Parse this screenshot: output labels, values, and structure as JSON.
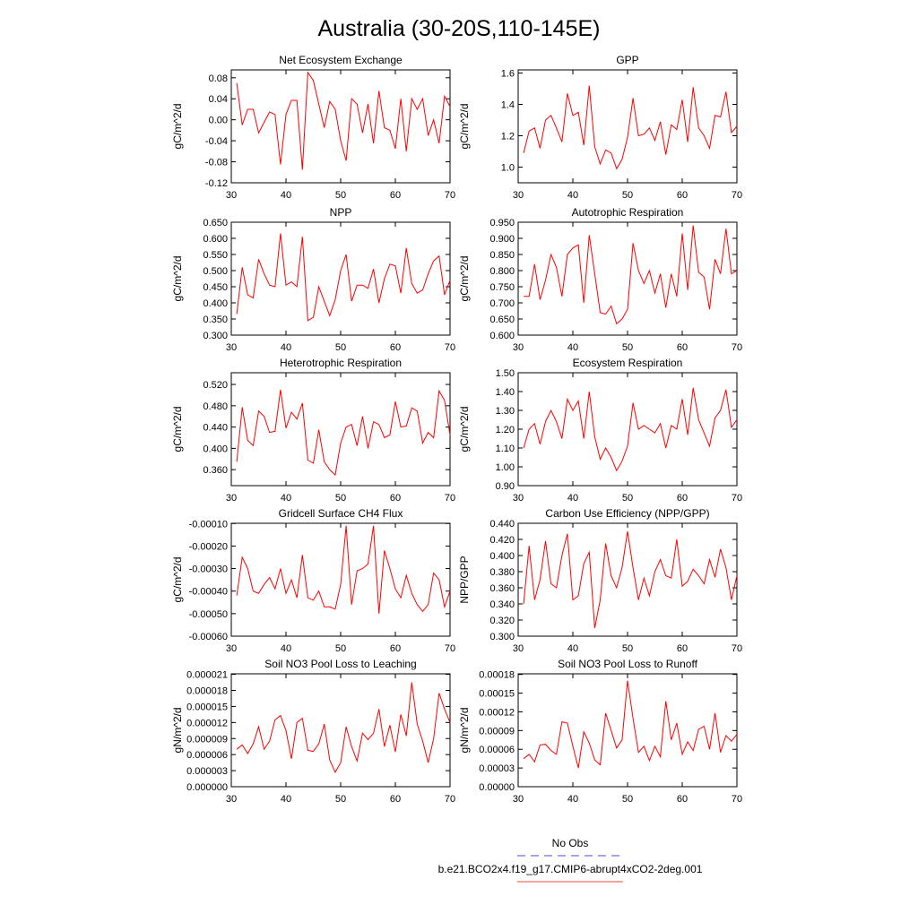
{
  "title": "Australia (30-20S,110-145E)",
  "legend": [
    {
      "label": "No Obs",
      "color": "#4b4bd8",
      "dashed": true
    },
    {
      "label": "b.e21.BCO2x4.f19_g17.CMIP6-abrupt4xCO2-2deg.001",
      "color": "#e8473f",
      "dashed": false
    }
  ],
  "chart_data": [
    {
      "type": "line",
      "title": "Net Ecosystem Exchange",
      "ylabel": "gC/m^2/d",
      "color": "#ff0000",
      "x": [
        31,
        32,
        33,
        34,
        35,
        36,
        37,
        38,
        39,
        40,
        41,
        42,
        43,
        44,
        45,
        46,
        47,
        48,
        49,
        50,
        51,
        52,
        53,
        54,
        55,
        56,
        57,
        58,
        59,
        60,
        61,
        62,
        63,
        64,
        65,
        66,
        67,
        68,
        69,
        70
      ],
      "values": [
        0.07,
        -0.01,
        0.02,
        0.02,
        -0.025,
        -0.005,
        0.015,
        0.01,
        -0.085,
        0.01,
        0.037,
        0.037,
        -0.095,
        0.09,
        0.075,
        0.03,
        -0.015,
        0.035,
        0.02,
        -0.04,
        -0.078,
        0.04,
        0.03,
        -0.025,
        0.03,
        -0.045,
        0.055,
        -0.015,
        -0.02,
        -0.055,
        0.04,
        -0.06,
        0.04,
        0.02,
        0.04,
        -0.03,
        0,
        -0.045,
        0.045,
        0.025
      ],
      "xlim": [
        30,
        70
      ],
      "xticks": [
        30,
        40,
        50,
        60,
        70
      ],
      "ylim": [
        -0.12,
        0.095
      ],
      "yticks": [
        -0.12,
        -0.08,
        -0.04,
        {
          "value": 0,
          "label": "0.00"
        },
        0.04,
        0.08
      ]
    },
    {
      "type": "line",
      "title": "GPP",
      "ylabel": "gC/m^2/d",
      "color": "#ff0000",
      "x": [
        31,
        32,
        33,
        34,
        35,
        36,
        37,
        38,
        39,
        40,
        41,
        42,
        43,
        44,
        45,
        46,
        47,
        48,
        49,
        50,
        51,
        52,
        53,
        54,
        55,
        56,
        57,
        58,
        59,
        60,
        61,
        62,
        63,
        64,
        65,
        66,
        67,
        68,
        69,
        70
      ],
      "values": [
        1.09,
        1.23,
        1.25,
        1.12,
        1.3,
        1.33,
        1.25,
        1.16,
        1.47,
        1.33,
        1.35,
        1.14,
        1.52,
        1.13,
        1.02,
        1.11,
        1.09,
        0.99,
        1.05,
        1.19,
        1.44,
        1.2,
        1.21,
        1.25,
        1.17,
        1.29,
        1.08,
        1.27,
        1.24,
        1.43,
        1.16,
        1.51,
        1.25,
        1.2,
        1.12,
        1.33,
        1.32,
        1.48,
        1.22,
        1.26
      ],
      "xlim": [
        30,
        70
      ],
      "xticks": [
        30,
        40,
        50,
        60,
        70
      ],
      "ylim": [
        0.9,
        1.62
      ],
      "yticks": [
        {
          "value": 1,
          "label": "1.0"
        },
        1.2,
        1.4,
        1.6
      ]
    },
    {
      "type": "line",
      "title": "NPP",
      "ylabel": "gC/m^2/d",
      "color": "#ff0000",
      "x": [
        31,
        32,
        33,
        34,
        35,
        36,
        37,
        38,
        39,
        40,
        41,
        42,
        43,
        44,
        45,
        46,
        47,
        48,
        49,
        50,
        51,
        52,
        53,
        54,
        55,
        56,
        57,
        58,
        59,
        60,
        61,
        62,
        63,
        64,
        65,
        66,
        67,
        68,
        69,
        70
      ],
      "values": [
        0.365,
        0.51,
        0.425,
        0.415,
        0.535,
        0.49,
        0.455,
        0.45,
        0.615,
        0.455,
        0.465,
        0.45,
        0.605,
        0.345,
        0.355,
        0.45,
        0.405,
        0.36,
        0.41,
        0.5,
        0.55,
        0.405,
        0.455,
        0.455,
        0.445,
        0.505,
        0.4,
        0.475,
        0.52,
        0.515,
        0.43,
        0.57,
        0.46,
        0.43,
        0.44,
        0.49,
        0.53,
        0.545,
        0.425,
        0.47
      ],
      "xlim": [
        30,
        70
      ],
      "xticks": [
        30,
        40,
        50,
        60,
        70
      ],
      "ylim": [
        0.3,
        0.65
      ],
      "yticks": [
        {
          "value": 0.3,
          "label": "0.300"
        },
        {
          "value": 0.35,
          "label": "0.350"
        },
        {
          "value": 0.4,
          "label": "0.400"
        },
        {
          "value": 0.45,
          "label": "0.450"
        },
        {
          "value": 0.5,
          "label": "0.500"
        },
        {
          "value": 0.55,
          "label": "0.550"
        },
        {
          "value": 0.6,
          "label": "0.600"
        },
        {
          "value": 0.65,
          "label": "0.650"
        }
      ]
    },
    {
      "type": "line",
      "title": "Autotrophic Respiration",
      "ylabel": "gC/m^2/d",
      "color": "#ff0000",
      "x": [
        31,
        32,
        33,
        34,
        35,
        36,
        37,
        38,
        39,
        40,
        41,
        42,
        43,
        44,
        45,
        46,
        47,
        48,
        49,
        50,
        51,
        52,
        53,
        54,
        55,
        56,
        57,
        58,
        59,
        60,
        61,
        62,
        63,
        64,
        65,
        66,
        67,
        68,
        69,
        70
      ],
      "values": [
        0.72,
        0.72,
        0.82,
        0.71,
        0.77,
        0.85,
        0.81,
        0.72,
        0.85,
        0.87,
        0.88,
        0.7,
        0.91,
        0.79,
        0.67,
        0.665,
        0.69,
        0.635,
        0.65,
        0.68,
        0.885,
        0.8,
        0.76,
        0.8,
        0.73,
        0.79,
        0.685,
        0.79,
        0.72,
        0.915,
        0.74,
        0.94,
        0.795,
        0.78,
        0.68,
        0.835,
        0.79,
        0.93,
        0.79,
        0.8
      ],
      "xlim": [
        30,
        70
      ],
      "xticks": [
        30,
        40,
        50,
        60,
        70
      ],
      "ylim": [
        0.6,
        0.95
      ],
      "yticks": [
        {
          "value": 0.6,
          "label": "0.600"
        },
        {
          "value": 0.65,
          "label": "0.650"
        },
        {
          "value": 0.7,
          "label": "0.700"
        },
        {
          "value": 0.75,
          "label": "0.750"
        },
        {
          "value": 0.8,
          "label": "0.800"
        },
        {
          "value": 0.85,
          "label": "0.850"
        },
        {
          "value": 0.9,
          "label": "0.900"
        },
        {
          "value": 0.95,
          "label": "0.950"
        }
      ]
    },
    {
      "type": "line",
      "title": "Heterotrophic Respiration",
      "ylabel": "gC/m^2/d",
      "color": "#ff0000",
      "x": [
        31,
        32,
        33,
        34,
        35,
        36,
        37,
        38,
        39,
        40,
        41,
        42,
        43,
        44,
        45,
        46,
        47,
        48,
        49,
        50,
        51,
        52,
        53,
        54,
        55,
        56,
        57,
        58,
        59,
        60,
        61,
        62,
        63,
        64,
        65,
        66,
        67,
        68,
        69,
        70
      ],
      "values": [
        0.375,
        0.477,
        0.415,
        0.405,
        0.47,
        0.46,
        0.43,
        0.432,
        0.51,
        0.438,
        0.468,
        0.455,
        0.485,
        0.378,
        0.372,
        0.435,
        0.375,
        0.36,
        0.35,
        0.41,
        0.44,
        0.445,
        0.405,
        0.46,
        0.4,
        0.45,
        0.445,
        0.42,
        0.425,
        0.488,
        0.44,
        0.442,
        0.476,
        0.47,
        0.41,
        0.43,
        0.42,
        0.508,
        0.49,
        0.425
      ],
      "xlim": [
        30,
        70
      ],
      "xticks": [
        30,
        40,
        50,
        60,
        70
      ],
      "ylim": [
        0.33,
        0.542
      ],
      "yticks": [
        {
          "value": 0.36,
          "label": "0.360"
        },
        {
          "value": 0.4,
          "label": "0.400"
        },
        {
          "value": 0.44,
          "label": "0.440"
        },
        {
          "value": 0.48,
          "label": "0.480"
        },
        {
          "value": 0.52,
          "label": "0.520"
        }
      ]
    },
    {
      "type": "line",
      "title": "Ecosystem Respiration",
      "ylabel": "gC/m^2/d",
      "color": "#ff0000",
      "x": [
        31,
        32,
        33,
        34,
        35,
        36,
        37,
        38,
        39,
        40,
        41,
        42,
        43,
        44,
        45,
        46,
        47,
        48,
        49,
        50,
        51,
        52,
        53,
        54,
        55,
        56,
        57,
        58,
        59,
        60,
        61,
        62,
        63,
        64,
        65,
        66,
        67,
        68,
        69,
        70
      ],
      "values": [
        1.1,
        1.2,
        1.23,
        1.12,
        1.24,
        1.3,
        1.24,
        1.15,
        1.36,
        1.3,
        1.35,
        1.15,
        1.4,
        1.16,
        1.04,
        1.1,
        1.05,
        0.98,
        1.03,
        1.11,
        1.34,
        1.2,
        1.22,
        1.2,
        1.18,
        1.23,
        1.1,
        1.22,
        1.2,
        1.36,
        1.17,
        1.42,
        1.25,
        1.18,
        1.11,
        1.26,
        1.3,
        1.41,
        1.21,
        1.25
      ],
      "xlim": [
        30,
        70
      ],
      "xticks": [
        30,
        40,
        50,
        60,
        70
      ],
      "ylim": [
        0.9,
        1.5
      ],
      "yticks": [
        {
          "value": 0.9,
          "label": "0.90"
        },
        {
          "value": 1,
          "label": "1.00"
        },
        {
          "value": 1.1,
          "label": "1.10"
        },
        {
          "value": 1.2,
          "label": "1.20"
        },
        {
          "value": 1.3,
          "label": "1.30"
        },
        {
          "value": 1.4,
          "label": "1.40"
        },
        {
          "value": 1.5,
          "label": "1.50"
        }
      ]
    },
    {
      "type": "line",
      "title": "Gridcell Surface CH4 Flux",
      "ylabel": "gC/m^2/d",
      "color": "#ff0000",
      "x": [
        31,
        32,
        33,
        34,
        35,
        36,
        37,
        38,
        39,
        40,
        41,
        42,
        43,
        44,
        45,
        46,
        47,
        48,
        49,
        50,
        51,
        52,
        53,
        54,
        55,
        56,
        57,
        58,
        59,
        60,
        61,
        62,
        63,
        64,
        65,
        66,
        67,
        68,
        69,
        70
      ],
      "values": [
        -0.00042,
        -0.00025,
        -0.0003,
        -0.0004,
        -0.00041,
        -0.00037,
        -0.00034,
        -0.00039,
        -0.0003,
        -0.00041,
        -0.00035,
        -0.00043,
        -0.00024,
        -0.00043,
        -0.00044,
        -0.0004,
        -0.00047,
        -0.00047,
        -0.00048,
        -0.00037,
        -0.00011,
        -0.00046,
        -0.00031,
        -0.0003,
        -0.00028,
        -0.00011,
        -0.0005,
        -0.00022,
        -0.0003,
        -0.00039,
        -0.00043,
        -0.00033,
        -0.00041,
        -0.00046,
        -0.00049,
        -0.00046,
        -0.00032,
        -0.00035,
        -0.00047,
        -0.0004
      ],
      "xlim": [
        30,
        70
      ],
      "xticks": [
        30,
        40,
        50,
        60,
        70
      ],
      "ylim": [
        -0.0006,
        -9.9e-05
      ],
      "yticks": [
        {
          "value": -0.0006,
          "label": "-0.00060"
        },
        {
          "value": -0.0005,
          "label": "-0.00050"
        },
        {
          "value": -0.0004,
          "label": "-0.00040"
        },
        {
          "value": -0.0003,
          "label": "-0.00030"
        },
        {
          "value": -0.0002,
          "label": "-0.00020"
        },
        {
          "value": -0.0001,
          "label": "-0.00010"
        }
      ]
    },
    {
      "type": "line",
      "title": "Carbon Use Efficiency (NPP/GPP)",
      "ylabel": "NPP/GPP",
      "color": "#ff0000",
      "x": [
        31,
        32,
        33,
        34,
        35,
        36,
        37,
        38,
        39,
        40,
        41,
        42,
        43,
        44,
        45,
        46,
        47,
        48,
        49,
        50,
        51,
        52,
        53,
        54,
        55,
        56,
        57,
        58,
        59,
        60,
        61,
        62,
        63,
        64,
        65,
        66,
        67,
        68,
        69,
        70
      ],
      "values": [
        0.34,
        0.412,
        0.345,
        0.37,
        0.418,
        0.365,
        0.36,
        0.4,
        0.427,
        0.345,
        0.35,
        0.39,
        0.404,
        0.31,
        0.345,
        0.415,
        0.375,
        0.36,
        0.385,
        0.43,
        0.385,
        0.345,
        0.372,
        0.35,
        0.38,
        0.395,
        0.375,
        0.372,
        0.42,
        0.362,
        0.368,
        0.383,
        0.375,
        0.365,
        0.395,
        0.373,
        0.408,
        0.385,
        0.345,
        0.375
      ],
      "xlim": [
        30,
        70
      ],
      "xticks": [
        30,
        40,
        50,
        60,
        70
      ],
      "ylim": [
        0.3,
        0.44
      ],
      "yticks": [
        {
          "value": 0.3,
          "label": "0.300"
        },
        {
          "value": 0.32,
          "label": "0.320"
        },
        {
          "value": 0.34,
          "label": "0.340"
        },
        {
          "value": 0.36,
          "label": "0.360"
        },
        {
          "value": 0.38,
          "label": "0.380"
        },
        {
          "value": 0.4,
          "label": "0.400"
        },
        {
          "value": 0.42,
          "label": "0.420"
        },
        {
          "value": 0.44,
          "label": "0.440"
        }
      ]
    },
    {
      "type": "line",
      "title": "Soil NO3 Pool Loss to Leaching",
      "ylabel": "gN/m^2/d",
      "color": "#ff0000",
      "x": [
        31,
        32,
        33,
        34,
        35,
        36,
        37,
        38,
        39,
        40,
        41,
        42,
        43,
        44,
        45,
        46,
        47,
        48,
        49,
        50,
        51,
        52,
        53,
        54,
        55,
        56,
        57,
        58,
        59,
        60,
        61,
        62,
        63,
        64,
        65,
        66,
        67,
        68,
        69,
        70
      ],
      "values": [
        7e-06,
        7.8e-06,
        6.2e-06,
        8e-06,
        1.12e-05,
        7e-06,
        8.5e-06,
        1.25e-05,
        1.33e-05,
        1.05e-05,
        5.2e-06,
        1.2e-05,
        1.28e-05,
        6.8e-06,
        6.6e-06,
        8e-06,
        1.17e-05,
        5e-06,
        2.7e-06,
        4.5e-06,
        1.12e-05,
        7.5e-06,
        4.8e-06,
        1e-05,
        8.8e-06,
        1e-05,
        1.45e-05,
        7.5e-06,
        1.15e-05,
        6.5e-06,
        1.35e-05,
        9.5e-06,
        1.95e-05,
        1.17e-05,
        8.5e-06,
        4.5e-06,
        9e-06,
        1.75e-05,
        1.45e-05,
        1.2e-05
      ],
      "xlim": [
        30,
        70
      ],
      "xticks": [
        30,
        40,
        50,
        60,
        70
      ],
      "ylim": [
        0,
        2.11e-05
      ],
      "yticks": [
        {
          "value": 0,
          "label": "0.000000"
        },
        3e-06,
        6e-06,
        9e-06,
        1.2e-05,
        1.5e-05,
        1.8e-05,
        2.1e-05
      ]
    },
    {
      "type": "line",
      "title": "Soil NO3 Pool Loss to Runoff",
      "ylabel": "gN/m^2/d",
      "color": "#ff0000",
      "x": [
        31,
        32,
        33,
        34,
        35,
        36,
        37,
        38,
        39,
        40,
        41,
        42,
        43,
        44,
        45,
        46,
        47,
        48,
        49,
        50,
        51,
        52,
        53,
        54,
        55,
        56,
        57,
        58,
        59,
        60,
        61,
        62,
        63,
        64,
        65,
        66,
        67,
        68,
        69,
        70
      ],
      "values": [
        4.5e-05,
        5.2e-05,
        4e-05,
        6.7e-05,
        6.8e-05,
        5.8e-05,
        5.2e-05,
        0.000104,
        0.000102,
        6.5e-05,
        3e-05,
        8.8e-05,
        7e-05,
        4.3e-05,
        3.5e-05,
        0.000118,
        9e-05,
        6.2e-05,
        7.5e-05,
        0.00017,
        0.00011,
        5.5e-05,
        6.5e-05,
        4.2e-05,
        6.5e-05,
        4.8e-05,
        0.000137,
        7.5e-05,
        0.000102,
        5.2e-05,
        7.2e-05,
        5.8e-05,
        9.2e-05,
        9.7e-05,
        6e-05,
        0.000118,
        5.5e-05,
        8.2e-05,
        7.3e-05,
        8.4e-05
      ],
      "xlim": [
        30,
        70
      ],
      "xticks": [
        30,
        40,
        50,
        60,
        70
      ],
      "ylim": [
        0,
        0.000181
      ],
      "yticks": [
        {
          "value": 0,
          "label": "0.00000"
        },
        3e-05,
        6e-05,
        9e-05,
        0.00012,
        0.00015,
        0.00018
      ]
    }
  ]
}
